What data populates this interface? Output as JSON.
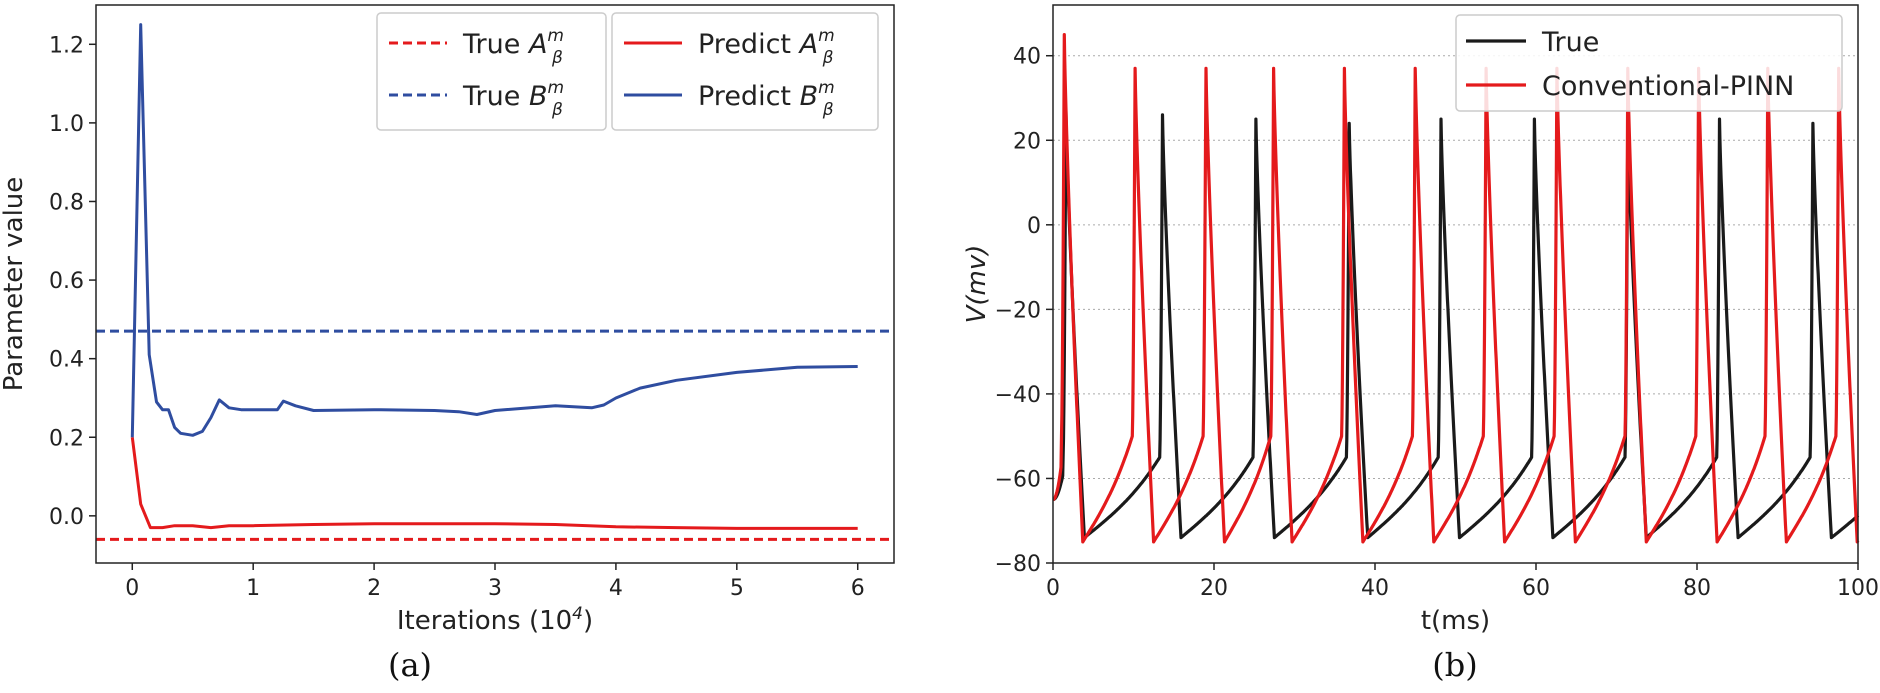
{
  "figure_captions": [
    "(a)",
    "(b)"
  ],
  "colors": {
    "red": "#e41a1c",
    "blue": "#2f4da0",
    "black": "#1a1a1a"
  },
  "chart_data": [
    {
      "type": "line",
      "xlabel": "Iterations (10",
      "xlabel_sup": "4",
      "xlabel_suffix": ")",
      "ylabel": "Parameter value",
      "xlim": [
        -0.3,
        6.3
      ],
      "ylim": [
        -0.12,
        1.3
      ],
      "xticks": [
        0,
        1,
        2,
        3,
        4,
        5,
        6
      ],
      "yticks": [
        0.0,
        0.2,
        0.4,
        0.6,
        0.8,
        1.0,
        1.2
      ],
      "ytick_labels": [
        "0.0",
        "0.2",
        "0.4",
        "0.6",
        "0.8",
        "1.0",
        "1.2"
      ],
      "grid": false,
      "legend_position": "top-right",
      "series": [
        {
          "name": "True A",
          "sup": "m",
          "sub": "β",
          "color": "red",
          "style": "dashed",
          "hline": -0.06
        },
        {
          "name": "True B",
          "sup": "m",
          "sub": "β",
          "color": "blue",
          "style": "dashed",
          "hline": 0.47
        },
        {
          "name": "Predict A",
          "sup": "m",
          "sub": "β",
          "color": "red",
          "style": "solid",
          "x": [
            0,
            0.07,
            0.15,
            0.25,
            0.35,
            0.5,
            0.65,
            0.8,
            1.0,
            1.5,
            2.0,
            2.5,
            3.0,
            3.5,
            4.0,
            4.5,
            5.0,
            5.5,
            6.0
          ],
          "y": [
            0.2,
            0.03,
            -0.03,
            -0.03,
            -0.025,
            -0.025,
            -0.03,
            -0.025,
            -0.025,
            -0.022,
            -0.02,
            -0.02,
            -0.02,
            -0.022,
            -0.028,
            -0.03,
            -0.032,
            -0.032,
            -0.032
          ]
        },
        {
          "name": "Predict B",
          "sup": "m",
          "sub": "β",
          "color": "blue",
          "style": "solid",
          "x": [
            0,
            0.07,
            0.14,
            0.2,
            0.25,
            0.3,
            0.35,
            0.4,
            0.5,
            0.58,
            0.65,
            0.72,
            0.8,
            0.9,
            1.0,
            1.2,
            1.25,
            1.35,
            1.5,
            2.0,
            2.5,
            2.7,
            2.85,
            3.0,
            3.5,
            3.8,
            3.9,
            4.0,
            4.2,
            4.5,
            5.0,
            5.5,
            6.0
          ],
          "y": [
            0.2,
            1.25,
            0.41,
            0.29,
            0.27,
            0.27,
            0.225,
            0.21,
            0.205,
            0.215,
            0.25,
            0.295,
            0.275,
            0.27,
            0.27,
            0.27,
            0.292,
            0.28,
            0.268,
            0.27,
            0.268,
            0.265,
            0.258,
            0.268,
            0.28,
            0.275,
            0.282,
            0.3,
            0.325,
            0.345,
            0.365,
            0.378,
            0.38
          ]
        }
      ]
    },
    {
      "type": "line",
      "xlabel": "t(ms)",
      "ylabel": "V(mv)",
      "xlim": [
        0,
        100
      ],
      "ylim": [
        -80,
        52
      ],
      "xticks": [
        0,
        20,
        40,
        60,
        80,
        100
      ],
      "yticks": [
        -80,
        -60,
        -40,
        -20,
        0,
        20,
        40
      ],
      "ytick_labels": [
        "−80",
        "−60",
        "−40",
        "−20",
        "0",
        "20",
        "40"
      ],
      "grid": true,
      "grid_axis": "y",
      "legend_position": "top-right",
      "series": [
        {
          "name": "True",
          "color": "black",
          "style": "solid",
          "spikes_t": [
            1.6,
            13.6,
            25.2,
            36.8,
            48.2,
            59.8,
            71.4,
            82.8,
            94.4
          ],
          "spikes_peak": [
            27,
            26,
            25,
            24,
            25,
            25,
            24,
            25,
            24
          ],
          "start_v": -65,
          "rest_v": -74,
          "pre_spike_v": -55
        },
        {
          "name": "Conventional-PINN",
          "color": "red",
          "style": "solid",
          "spikes_t": [
            1.4,
            10.2,
            19.0,
            27.4,
            36.2,
            45.0,
            53.8,
            62.6,
            71.4,
            80.2,
            88.8,
            97.6
          ],
          "spikes_peak": [
            45,
            37,
            37,
            37,
            37,
            37,
            37,
            37,
            37,
            37,
            37,
            37
          ],
          "start_v": -65,
          "rest_v": -75,
          "pre_spike_v": -50
        }
      ]
    }
  ]
}
